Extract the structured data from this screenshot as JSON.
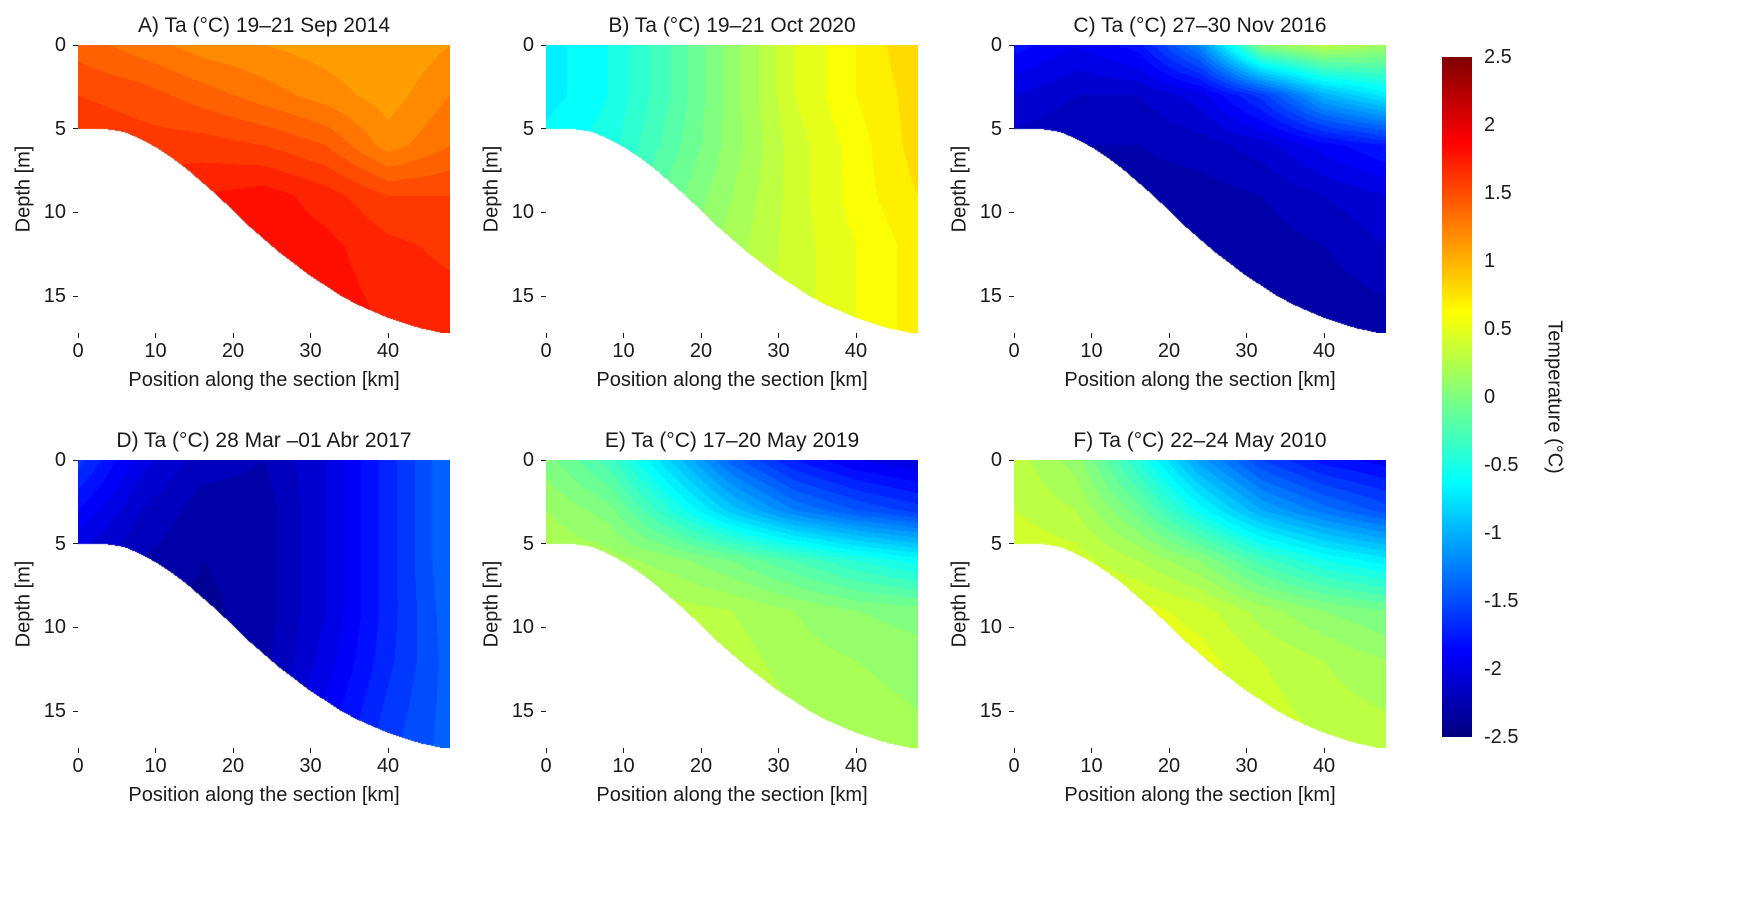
{
  "figure": {
    "background": "#ffffff",
    "text_color": "#1a1a1a"
  },
  "chart_data": {
    "type": "heatmap",
    "subtype": "filled-contour-section",
    "colormap": "jet",
    "vmin": -2.5,
    "vmax": 2.5,
    "contour_interval": 0.1,
    "xlim": [
      0,
      48
    ],
    "ylim": [
      0,
      17.2
    ],
    "xlabel": "Position along the section [km]",
    "ylabel": "Depth [m]",
    "x_ticks": [
      0,
      10,
      20,
      30,
      40
    ],
    "y_ticks": [
      0,
      5,
      10,
      15
    ],
    "bathymetry": {
      "x": [
        0,
        2,
        4,
        6,
        8,
        10,
        12,
        14,
        16,
        18,
        20,
        22,
        24,
        26,
        28,
        30,
        32,
        34,
        36,
        38,
        40,
        42,
        44,
        46,
        48
      ],
      "bottom_depth": [
        5.0,
        5.0,
        5.05,
        5.2,
        5.6,
        6.1,
        6.7,
        7.4,
        8.2,
        9.0,
        9.9,
        10.8,
        11.6,
        12.4,
        13.1,
        13.8,
        14.4,
        15.0,
        15.5,
        15.9,
        16.3,
        16.6,
        16.9,
        17.1,
        17.3
      ]
    },
    "grid_x": [
      0,
      8,
      16,
      24,
      32,
      40,
      48
    ],
    "grid_depth": [
      0,
      3,
      6,
      9,
      12,
      15,
      17.2
    ],
    "panels": [
      {
        "id": "A",
        "title": "A) Ta (°C) 19–21 Sep 2014",
        "temps": [
          [
            1.4,
            1.3,
            1.2,
            1.15,
            1.1,
            1.05,
            1.15
          ],
          [
            1.55,
            1.5,
            1.4,
            1.3,
            1.2,
            1.1,
            1.25
          ],
          [
            1.65,
            1.6,
            1.6,
            1.55,
            1.45,
            1.2,
            1.35
          ],
          [
            1.7,
            1.7,
            1.75,
            1.8,
            1.7,
            1.55,
            1.55
          ],
          [
            1.7,
            1.72,
            1.78,
            1.82,
            1.78,
            1.68,
            1.62
          ],
          [
            1.7,
            1.72,
            1.78,
            1.82,
            1.8,
            1.72,
            1.68
          ],
          [
            1.7,
            1.72,
            1.78,
            1.8,
            1.8,
            1.75,
            1.7
          ]
        ]
      },
      {
        "id": "B",
        "title": "B) Ta (°C) 19–21 Oct 2020",
        "temps": [
          [
            -0.7,
            -0.55,
            -0.25,
            0.1,
            0.45,
            0.65,
            0.85
          ],
          [
            -0.7,
            -0.55,
            -0.25,
            0.1,
            0.45,
            0.65,
            0.8
          ],
          [
            -0.6,
            -0.5,
            -0.2,
            0.1,
            0.4,
            0.6,
            0.8
          ],
          [
            -0.5,
            -0.4,
            -0.1,
            0.15,
            0.4,
            0.6,
            0.75
          ],
          [
            -0.4,
            -0.3,
            0.0,
            0.2,
            0.4,
            0.55,
            0.7
          ],
          [
            -0.3,
            -0.2,
            0.05,
            0.25,
            0.4,
            0.55,
            0.7
          ],
          [
            -0.3,
            -0.2,
            0.1,
            0.3,
            0.45,
            0.55,
            0.7
          ]
        ]
      },
      {
        "id": "C",
        "title": "C) Ta (°C) 27–30 Nov 2016",
        "temps": [
          [
            -1.8,
            -1.95,
            -1.8,
            -1.2,
            0.05,
            0.3,
            0.15
          ],
          [
            -2.05,
            -2.15,
            -2.15,
            -2.0,
            -1.6,
            -1.0,
            -0.7
          ],
          [
            -2.2,
            -2.25,
            -2.25,
            -2.2,
            -2.1,
            -1.9,
            -1.75
          ],
          [
            -2.25,
            -2.3,
            -2.3,
            -2.3,
            -2.25,
            -2.15,
            -2.05
          ],
          [
            -2.3,
            -2.32,
            -2.35,
            -2.35,
            -2.3,
            -2.25,
            -2.15
          ],
          [
            -2.3,
            -2.33,
            -2.36,
            -2.38,
            -2.35,
            -2.3,
            -2.25
          ],
          [
            -2.3,
            -2.34,
            -2.38,
            -2.4,
            -2.38,
            -2.32,
            -2.28
          ]
        ]
      },
      {
        "id": "D",
        "title": "D) Ta (°C) 28 Mar –01 Abr 2017",
        "temps": [
          [
            -1.6,
            -2.0,
            -2.2,
            -2.25,
            -2.05,
            -1.7,
            -1.35
          ],
          [
            -1.85,
            -2.15,
            -2.3,
            -2.3,
            -2.05,
            -1.7,
            -1.35
          ],
          [
            -2.1,
            -2.25,
            -2.35,
            -2.3,
            -2.05,
            -1.7,
            -1.35
          ],
          [
            -2.2,
            -2.3,
            -2.38,
            -2.3,
            -2.05,
            -1.7,
            -1.38
          ],
          [
            -2.25,
            -2.32,
            -2.38,
            -2.28,
            -2.0,
            -1.68,
            -1.4
          ],
          [
            -2.28,
            -2.34,
            -2.36,
            -2.22,
            -1.92,
            -1.62,
            -1.4
          ],
          [
            -2.3,
            -2.35,
            -2.35,
            -2.18,
            -1.88,
            -1.58,
            -1.4
          ]
        ]
      },
      {
        "id": "E",
        "title": "E) Ta (°C) 17–20 May 2019",
        "temps": [
          [
            0.0,
            -0.3,
            -0.85,
            -1.4,
            -1.75,
            -1.95,
            -2.05
          ],
          [
            0.15,
            0.0,
            -0.45,
            -0.9,
            -1.25,
            -1.45,
            -1.6
          ],
          [
            0.25,
            0.2,
            0.1,
            -0.05,
            -0.25,
            -0.45,
            -0.6
          ],
          [
            0.25,
            0.25,
            0.3,
            0.25,
            0.15,
            0.05,
            0.0
          ],
          [
            0.25,
            0.3,
            0.35,
            0.3,
            0.2,
            0.15,
            0.1
          ],
          [
            0.25,
            0.3,
            0.35,
            0.35,
            0.25,
            0.2,
            0.15
          ],
          [
            0.25,
            0.3,
            0.35,
            0.35,
            0.3,
            0.25,
            0.2
          ]
        ]
      },
      {
        "id": "F",
        "title": "F) Ta (°C) 22–24 May 2010",
        "temps": [
          [
            0.3,
            0.1,
            -0.45,
            -1.1,
            -1.55,
            -1.8,
            -1.9
          ],
          [
            0.35,
            0.25,
            -0.1,
            -0.6,
            -1.05,
            -1.3,
            -1.5
          ],
          [
            0.45,
            0.4,
            0.25,
            0.05,
            -0.3,
            -0.55,
            -0.7
          ],
          [
            0.45,
            0.5,
            0.5,
            0.4,
            0.2,
            0.05,
            -0.05
          ],
          [
            0.45,
            0.52,
            0.55,
            0.5,
            0.35,
            0.25,
            0.15
          ],
          [
            0.45,
            0.52,
            0.55,
            0.52,
            0.4,
            0.3,
            0.25
          ],
          [
            0.45,
            0.5,
            0.55,
            0.52,
            0.45,
            0.35,
            0.3
          ]
        ]
      }
    ],
    "colorbar": {
      "label": "Temperature (°C)",
      "orientation": "vertical",
      "position": "right",
      "ticks": [
        {
          "v": 2.5,
          "label": "2.5"
        },
        {
          "v": 2,
          "label": "2"
        },
        {
          "v": 1.5,
          "label": "1.5"
        },
        {
          "v": 1,
          "label": "1"
        },
        {
          "v": 0.5,
          "label": "0.5"
        },
        {
          "v": 0,
          "label": "0"
        },
        {
          "v": -0.5,
          "label": "-0.5"
        },
        {
          "v": -1,
          "label": "-1"
        },
        {
          "v": -1.5,
          "label": "-1.5"
        },
        {
          "v": -2,
          "label": "-2"
        },
        {
          "v": -2.5,
          "label": "-2.5"
        }
      ]
    }
  }
}
